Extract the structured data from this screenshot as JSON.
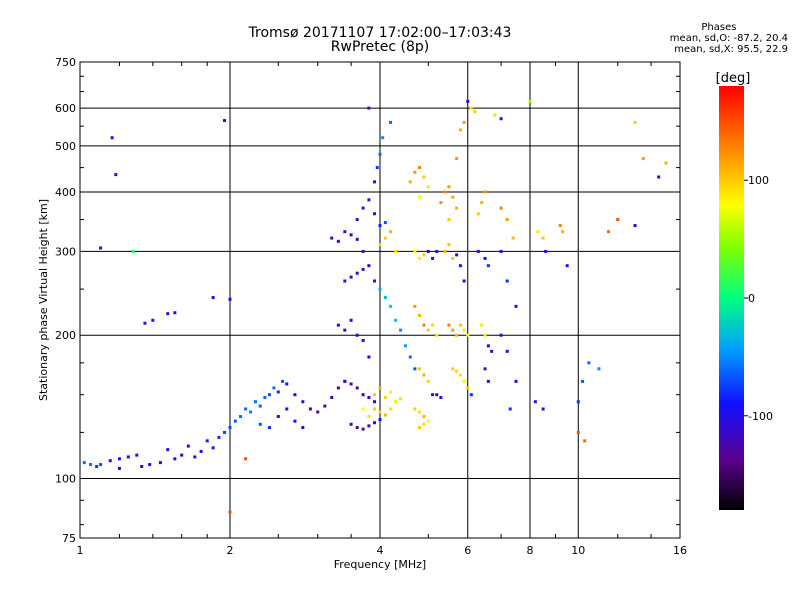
{
  "header": {
    "title_line1": "Tromsø 20171107 17:02:00–17:03:43",
    "title_line2": "RwPretec (8p)"
  },
  "stats": {
    "heading": "Phases",
    "line1": "mean, sd,O: -87.2, 20.4",
    "line2": "mean, sd,X:  95.5, 22.9"
  },
  "colors": {
    "grid": "#000000",
    "background": "#ffffff"
  },
  "chart_data": {
    "type": "scatter",
    "title": "Tromsø 20171107 17:02:00–17:03:43",
    "subtitle": "RwPretec (8p)",
    "xlabel": "Frequency [MHz]",
    "ylabel": "Stationary phase Virtual Height [km]",
    "x_scale": "log",
    "y_scale": "log",
    "xlim": [
      1,
      16
    ],
    "ylim": [
      75,
      750
    ],
    "x_ticks": [
      1,
      2,
      4,
      6,
      8,
      10,
      16
    ],
    "x_tick_labels": [
      "1",
      "2",
      "4",
      "6",
      "8",
      "10",
      "16"
    ],
    "y_ticks": [
      75,
      100,
      200,
      300,
      400,
      500,
      600,
      750
    ],
    "y_tick_labels": [
      "75",
      "100",
      "200",
      "300",
      "400",
      "500",
      "600",
      "750"
    ],
    "grid": true,
    "colorbar": {
      "label": "[deg]",
      "range": [
        -180,
        180
      ],
      "ticks": [
        100,
        0,
        -100
      ],
      "tick_labels": [
        "100",
        "0",
        "-100"
      ]
    },
    "series": [
      {
        "points": [
          [
            1.02,
            108,
            -60
          ],
          [
            1.05,
            107,
            -60
          ],
          [
            1.08,
            106,
            -80
          ],
          [
            1.1,
            107,
            -70
          ],
          [
            1.15,
            109,
            -90
          ],
          [
            1.2,
            110,
            -100
          ],
          [
            1.25,
            111,
            -100
          ],
          [
            1.3,
            112,
            -95
          ],
          [
            1.33,
            106,
            -110
          ],
          [
            1.38,
            107,
            -110
          ],
          [
            1.45,
            108,
            -120
          ],
          [
            1.5,
            115,
            -100
          ],
          [
            1.55,
            110,
            -115
          ],
          [
            1.6,
            112,
            -120
          ],
          [
            1.65,
            117,
            -90
          ],
          [
            1.7,
            111,
            -110
          ],
          [
            1.75,
            114,
            -100
          ],
          [
            1.8,
            120,
            -85
          ],
          [
            1.85,
            116,
            -100
          ],
          [
            1.9,
            122,
            -80
          ],
          [
            1.95,
            125,
            -75
          ],
          [
            2.0,
            128,
            -70
          ],
          [
            2.05,
            132,
            -65
          ],
          [
            2.1,
            135,
            -60
          ],
          [
            2.15,
            140,
            -60
          ],
          [
            2.2,
            138,
            -55
          ],
          [
            2.25,
            145,
            -60
          ],
          [
            2.3,
            142,
            -65
          ],
          [
            2.35,
            148,
            -60
          ],
          [
            2.4,
            150,
            -70
          ],
          [
            2.45,
            155,
            -60
          ],
          [
            2.5,
            152,
            -80
          ],
          [
            2.55,
            160,
            -70
          ],
          [
            2.6,
            158,
            -90
          ],
          [
            2.7,
            150,
            -95
          ],
          [
            2.8,
            145,
            -110
          ],
          [
            2.9,
            140,
            -120
          ],
          [
            3.0,
            138,
            -130
          ],
          [
            3.1,
            142,
            -125
          ],
          [
            3.2,
            148,
            -120
          ],
          [
            3.3,
            155,
            -130
          ],
          [
            3.4,
            160,
            -125
          ],
          [
            2.3,
            130,
            -70
          ],
          [
            2.4,
            128,
            -80
          ],
          [
            2.5,
            135,
            -90
          ],
          [
            2.6,
            140,
            -100
          ],
          [
            2.7,
            132,
            -110
          ],
          [
            2.8,
            128,
            -120
          ],
          [
            1.35,
            212,
            -110
          ],
          [
            1.4,
            215,
            -110
          ],
          [
            1.5,
            222,
            -110
          ],
          [
            1.55,
            223,
            -115
          ],
          [
            1.85,
            240,
            -95
          ],
          [
            2.0,
            238,
            -90
          ],
          [
            1.18,
            435,
            -110
          ],
          [
            1.16,
            520,
            -100
          ],
          [
            1.2,
            105,
            -100
          ],
          [
            1.28,
            300,
            10
          ],
          [
            1.1,
            305,
            -110
          ],
          [
            1.95,
            565,
            -120
          ],
          [
            2.0,
            85,
            150
          ],
          [
            2.15,
            110,
            150
          ],
          [
            3.2,
            320,
            -110
          ],
          [
            3.3,
            315,
            -120
          ],
          [
            3.4,
            330,
            -115
          ],
          [
            3.5,
            325,
            -130
          ],
          [
            3.6,
            318,
            -115
          ],
          [
            3.7,
            300,
            -120
          ],
          [
            3.4,
            260,
            -110
          ],
          [
            3.5,
            265,
            -125
          ],
          [
            3.6,
            270,
            -115
          ],
          [
            3.7,
            275,
            -120
          ],
          [
            3.8,
            280,
            -110
          ],
          [
            3.9,
            260,
            -100
          ],
          [
            3.3,
            210,
            -100
          ],
          [
            3.4,
            205,
            -115
          ],
          [
            3.5,
            215,
            -110
          ],
          [
            3.6,
            200,
            -100
          ],
          [
            3.7,
            195,
            -105
          ],
          [
            3.8,
            180,
            -95
          ],
          [
            3.4,
            160,
            -120
          ],
          [
            3.5,
            158,
            -125
          ],
          [
            3.6,
            155,
            -130
          ],
          [
            3.7,
            150,
            -120
          ],
          [
            3.8,
            148,
            -115
          ],
          [
            3.9,
            145,
            -110
          ],
          [
            3.5,
            130,
            -125
          ],
          [
            3.6,
            128,
            -130
          ],
          [
            3.7,
            127,
            -120
          ],
          [
            3.8,
            129,
            -110
          ],
          [
            3.9,
            131,
            -100
          ],
          [
            4.0,
            133,
            -90
          ],
          [
            3.6,
            350,
            -110
          ],
          [
            3.7,
            370,
            -100
          ],
          [
            3.8,
            385,
            -105
          ],
          [
            3.9,
            360,
            -95
          ],
          [
            4.0,
            340,
            -85
          ],
          [
            4.1,
            345,
            -70
          ],
          [
            3.9,
            420,
            -90
          ],
          [
            3.95,
            450,
            -80
          ],
          [
            4.0,
            480,
            -60
          ],
          [
            4.05,
            520,
            -50
          ],
          [
            3.8,
            600,
            -110
          ],
          [
            4.2,
            560,
            -60
          ],
          [
            3.7,
            140,
            80
          ],
          [
            3.8,
            135,
            90
          ],
          [
            3.9,
            140,
            95
          ],
          [
            4.0,
            138,
            100
          ],
          [
            4.1,
            136,
            110
          ],
          [
            4.2,
            140,
            90
          ],
          [
            3.9,
            150,
            100
          ],
          [
            4.0,
            155,
            110
          ],
          [
            4.1,
            148,
            95
          ],
          [
            4.2,
            152,
            85
          ],
          [
            4.3,
            145,
            70
          ],
          [
            4.4,
            147,
            60
          ],
          [
            4.0,
            310,
            95
          ],
          [
            4.1,
            320,
            100
          ],
          [
            4.2,
            330,
            110
          ],
          [
            4.3,
            300,
            90
          ],
          [
            4.0,
            250,
            -40
          ],
          [
            4.1,
            240,
            -30
          ],
          [
            4.2,
            230,
            -20
          ],
          [
            4.3,
            215,
            -30
          ],
          [
            4.4,
            205,
            -50
          ],
          [
            4.5,
            190,
            -40
          ],
          [
            4.6,
            180,
            -60
          ],
          [
            4.7,
            170,
            -70
          ],
          [
            4.6,
            420,
            110
          ],
          [
            4.7,
            440,
            120
          ],
          [
            4.8,
            450,
            130
          ],
          [
            4.9,
            430,
            100
          ],
          [
            5.0,
            410,
            90
          ],
          [
            4.8,
            390,
            80
          ],
          [
            4.7,
            300,
            80
          ],
          [
            4.8,
            290,
            90
          ],
          [
            4.9,
            295,
            100
          ],
          [
            5.0,
            300,
            -120
          ],
          [
            5.1,
            290,
            -110
          ],
          [
            5.2,
            300,
            -100
          ],
          [
            4.7,
            230,
            120
          ],
          [
            4.8,
            220,
            110
          ],
          [
            4.9,
            210,
            130
          ],
          [
            5.0,
            205,
            100
          ],
          [
            5.1,
            210,
            95
          ],
          [
            5.2,
            200,
            90
          ],
          [
            4.8,
            170,
            100
          ],
          [
            4.9,
            165,
            110
          ],
          [
            5.0,
            160,
            95
          ],
          [
            5.1,
            150,
            -110
          ],
          [
            5.2,
            150,
            -120
          ],
          [
            5.3,
            148,
            -100
          ],
          [
            4.7,
            140,
            100
          ],
          [
            4.8,
            138,
            90
          ],
          [
            4.9,
            135,
            110
          ],
          [
            5.0,
            132,
            80
          ],
          [
            4.8,
            128,
            100
          ],
          [
            4.9,
            130,
            95
          ],
          [
            5.3,
            380,
            120
          ],
          [
            5.4,
            400,
            125
          ],
          [
            5.5,
            410,
            120
          ],
          [
            5.6,
            390,
            115
          ],
          [
            5.7,
            370,
            110
          ],
          [
            5.5,
            350,
            100
          ],
          [
            5.4,
            300,
            110
          ],
          [
            5.5,
            310,
            105
          ],
          [
            5.6,
            290,
            100
          ],
          [
            5.7,
            295,
            -110
          ],
          [
            5.8,
            280,
            -100
          ],
          [
            5.9,
            260,
            -90
          ],
          [
            5.5,
            210,
            130
          ],
          [
            5.6,
            205,
            120
          ],
          [
            5.7,
            200,
            110
          ],
          [
            5.8,
            210,
            100
          ],
          [
            5.9,
            205,
            90
          ],
          [
            6.0,
            200,
            80
          ],
          [
            5.6,
            170,
            100
          ],
          [
            5.7,
            168,
            95
          ],
          [
            5.8,
            165,
            90
          ],
          [
            5.9,
            160,
            85
          ],
          [
            6.0,
            155,
            100
          ],
          [
            6.1,
            150,
            -80
          ],
          [
            5.8,
            540,
            110
          ],
          [
            5.9,
            560,
            120
          ],
          [
            6.0,
            620,
            -110
          ],
          [
            6.1,
            600,
            90
          ],
          [
            6.2,
            590,
            100
          ],
          [
            5.7,
            470,
            120
          ],
          [
            6.3,
            360,
            100
          ],
          [
            6.4,
            380,
            110
          ],
          [
            6.5,
            400,
            120
          ],
          [
            6.3,
            300,
            -100
          ],
          [
            6.5,
            290,
            -90
          ],
          [
            6.6,
            280,
            -80
          ],
          [
            6.4,
            210,
            90
          ],
          [
            6.5,
            200,
            85
          ],
          [
            6.6,
            190,
            -100
          ],
          [
            6.7,
            185,
            -110
          ],
          [
            6.5,
            170,
            -120
          ],
          [
            6.6,
            160,
            -110
          ],
          [
            6.8,
            580,
            60
          ],
          [
            7.0,
            570,
            -100
          ],
          [
            7.0,
            370,
            130
          ],
          [
            7.2,
            350,
            120
          ],
          [
            7.4,
            320,
            110
          ],
          [
            7.0,
            300,
            -90
          ],
          [
            7.2,
            260,
            -80
          ],
          [
            7.5,
            230,
            -100
          ],
          [
            7.0,
            200,
            -110
          ],
          [
            7.2,
            185,
            -90
          ],
          [
            7.5,
            160,
            -100
          ],
          [
            7.3,
            140,
            -80
          ],
          [
            8.0,
            620,
            50
          ],
          [
            8.3,
            330,
            90
          ],
          [
            8.5,
            320,
            100
          ],
          [
            8.6,
            300,
            -100
          ],
          [
            9.2,
            340,
            130
          ],
          [
            9.3,
            330,
            110
          ],
          [
            8.2,
            145,
            -100
          ],
          [
            8.5,
            140,
            -110
          ],
          [
            10.0,
            145,
            -80
          ],
          [
            10.2,
            160,
            -70
          ],
          [
            10.5,
            175,
            -60
          ],
          [
            11.0,
            170,
            -50
          ],
          [
            10.0,
            125,
            150
          ],
          [
            10.3,
            120,
            140
          ],
          [
            9.5,
            280,
            -90
          ],
          [
            12.0,
            350,
            150
          ],
          [
            11.5,
            330,
            140
          ],
          [
            13.0,
            560,
            100
          ],
          [
            13.5,
            470,
            120
          ],
          [
            14.5,
            430,
            -100
          ],
          [
            13.0,
            340,
            -120
          ],
          [
            15.0,
            460,
            110
          ]
        ]
      }
    ]
  }
}
